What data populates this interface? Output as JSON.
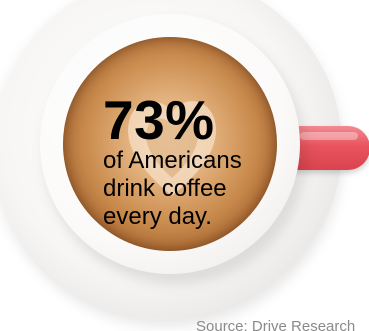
{
  "stat": {
    "value": "73%",
    "caption": "of Americans drink coffee every day."
  },
  "source": {
    "text": "Source: Drive Research"
  },
  "colors": {
    "cup_handle": "#e9545e",
    "coffee": "#c98b4d",
    "text": "#000000"
  }
}
